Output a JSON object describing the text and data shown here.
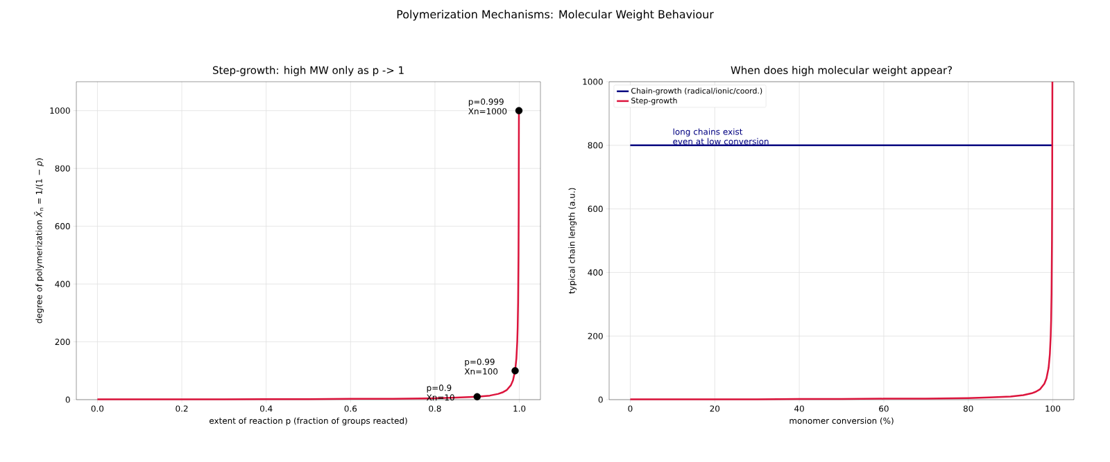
{
  "chart_data": [
    {
      "type": "line",
      "title": "Step-growth: high MW only as p -> 1",
      "xlabel": "extent of reaction  p  (fraction of groups reacted)",
      "ylabel": "degree of polymerization  *X̄*$_{n}$ = 1/(1 − *p*)",
      "annotations": [
        "Polymerization Mechanisms: Molecular Weight Behaviour",
        {
          "text": "p=0.9 Xn=10",
          "x": 0.9,
          "y": 10
        },
        {
          "text": "p=0.99 Xn=100",
          "x": 0.99,
          "y": 100
        },
        {
          "text": "p=0.999 Xn=1000",
          "x": 0.999,
          "y": 1000
        }
      ],
      "series": [
        {
          "color": "#dc143c",
          "x": [
            0,
            0.1,
            0.2,
            0.3,
            0.4,
            0.5,
            0.6,
            0.7,
            0.8,
            0.85,
            0.9,
            0.93,
            0.95,
            0.96,
            0.97,
            0.98,
            0.985,
            0.99,
            0.993,
            0.995,
            0.996,
            0.997,
            0.998,
            0.9985,
            0.999
          ],
          "values": [
            1,
            1,
            1,
            1,
            2,
            2,
            3,
            3,
            5,
            7,
            10,
            14,
            20,
            25,
            33,
            50,
            67,
            100,
            143,
            200,
            250,
            333,
            500,
            667,
            1000
          ]
        },
        {
          "type": "scatter",
          "color": "#000000",
          "marker": "circle",
          "x": [
            0.9,
            0.99,
            0.999
          ],
          "values": [
            10,
            100,
            1000
          ]
        }
      ],
      "xlim": [
        -0.05,
        1.05
      ],
      "ylim": [
        0,
        1100
      ],
      "xticks": [
        {
          "value": 0,
          "label": "0.0"
        },
        0.2,
        0.4,
        0.6,
        0.8,
        {
          "value": 1,
          "label": "1.0"
        }
      ],
      "yticks": [
        0,
        200,
        400,
        600,
        800,
        1000
      ],
      "grid": true,
      "legend": false,
      "line_style": "solid"
    },
    {
      "type": "line",
      "title": "When does high molecular weight appear?",
      "xlabel": "monomer conversion (%)",
      "ylabel": "typical chain length (a.u.)",
      "annotations": [
        {
          "text": "long chains exist\neven at low conversion",
          "x": 10,
          "y": 800
        }
      ],
      "series": [
        {
          "name": "Chain-growth (radical/ionic/coord.)",
          "color": "#000080",
          "x": [
            0,
            100
          ],
          "values": [
            800,
            800
          ]
        },
        {
          "name": "Step-growth",
          "color": "#dc143c",
          "x": [
            0,
            10,
            20,
            30,
            40,
            50,
            60,
            70,
            80,
            85,
            90,
            93,
            95,
            96,
            97,
            98,
            98.5,
            99,
            99.3,
            99.5,
            99.6,
            99.7,
            99.8,
            99.85,
            99.9
          ],
          "values": [
            1,
            1,
            1,
            1,
            2,
            2,
            3,
            3,
            5,
            7,
            10,
            14,
            20,
            25,
            33,
            50,
            67,
            100,
            143,
            200,
            250,
            333,
            500,
            667,
            1000
          ]
        }
      ],
      "xlim": [
        -5,
        105
      ],
      "ylim": [
        0,
        1000
      ],
      "xticks": [
        0,
        20,
        40,
        60,
        80,
        100
      ],
      "yticks": [
        0,
        200,
        400,
        600,
        800,
        1000
      ],
      "grid": true,
      "legend": "top left",
      "line_style": "solid",
      "marker": "none"
    }
  ]
}
